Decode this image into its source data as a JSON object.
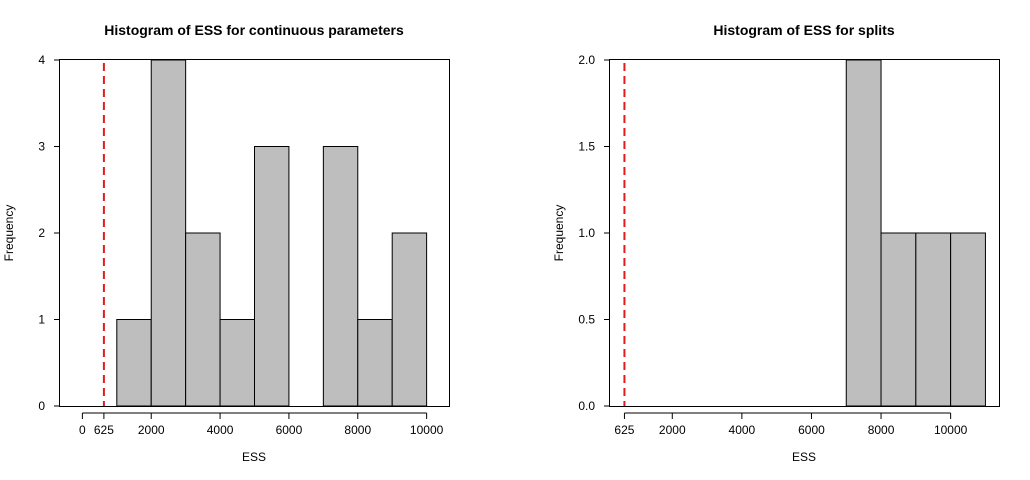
{
  "chart_data": [
    {
      "type": "bar",
      "title": "Histogram of ESS for continuous parameters",
      "xlabel": "ESS",
      "ylabel": "Frequency",
      "bins": [
        {
          "from": 1000,
          "to": 2000,
          "count": 1
        },
        {
          "from": 2000,
          "to": 3000,
          "count": 4
        },
        {
          "from": 3000,
          "to": 4000,
          "count": 2
        },
        {
          "from": 4000,
          "to": 5000,
          "count": 1
        },
        {
          "from": 5000,
          "to": 6000,
          "count": 3
        },
        {
          "from": 6000,
          "to": 7000,
          "count": 0
        },
        {
          "from": 7000,
          "to": 8000,
          "count": 3
        },
        {
          "from": 8000,
          "to": 9000,
          "count": 1
        },
        {
          "from": 9000,
          "to": 10000,
          "count": 2
        }
      ],
      "xlim": [
        -650,
        10650
      ],
      "ylim": [
        0,
        4
      ],
      "xticks": [
        0,
        625,
        2000,
        4000,
        6000,
        8000,
        10000
      ],
      "xtick_labels": [
        "0",
        "625",
        "2000",
        "4000",
        "6000",
        "8000",
        "10000"
      ],
      "yticks": [
        0,
        1,
        2,
        3,
        4
      ],
      "ytick_labels": [
        "0",
        "1",
        "2",
        "3",
        "4"
      ],
      "reference_line": {
        "x": 625,
        "color": "#e41a1c",
        "style": "dashed"
      },
      "grid": false,
      "bar_color": "#bebebe"
    },
    {
      "type": "bar",
      "title": "Histogram of ESS for splits",
      "xlabel": "ESS",
      "ylabel": "Frequency",
      "bins": [
        {
          "from": 7000,
          "to": 8000,
          "count": 2
        },
        {
          "from": 8000,
          "to": 9000,
          "count": 1
        },
        {
          "from": 9000,
          "to": 10000,
          "count": 1
        },
        {
          "from": 10000,
          "to": 11000,
          "count": 1
        }
      ],
      "xlim": [
        210,
        11390
      ],
      "ylim": [
        0,
        2
      ],
      "xticks": [
        625,
        2000,
        4000,
        6000,
        8000,
        10000
      ],
      "xtick_labels": [
        "625",
        "2000",
        "4000",
        "6000",
        "8000",
        "10000"
      ],
      "yticks": [
        0,
        0.5,
        1,
        1.5,
        2
      ],
      "ytick_labels": [
        "0.0",
        "0.5",
        "1.0",
        "1.5",
        "2.0"
      ],
      "reference_line": {
        "x": 625,
        "color": "#e41a1c",
        "style": "dashed"
      },
      "grid": false,
      "bar_color": "#bebebe"
    }
  ]
}
